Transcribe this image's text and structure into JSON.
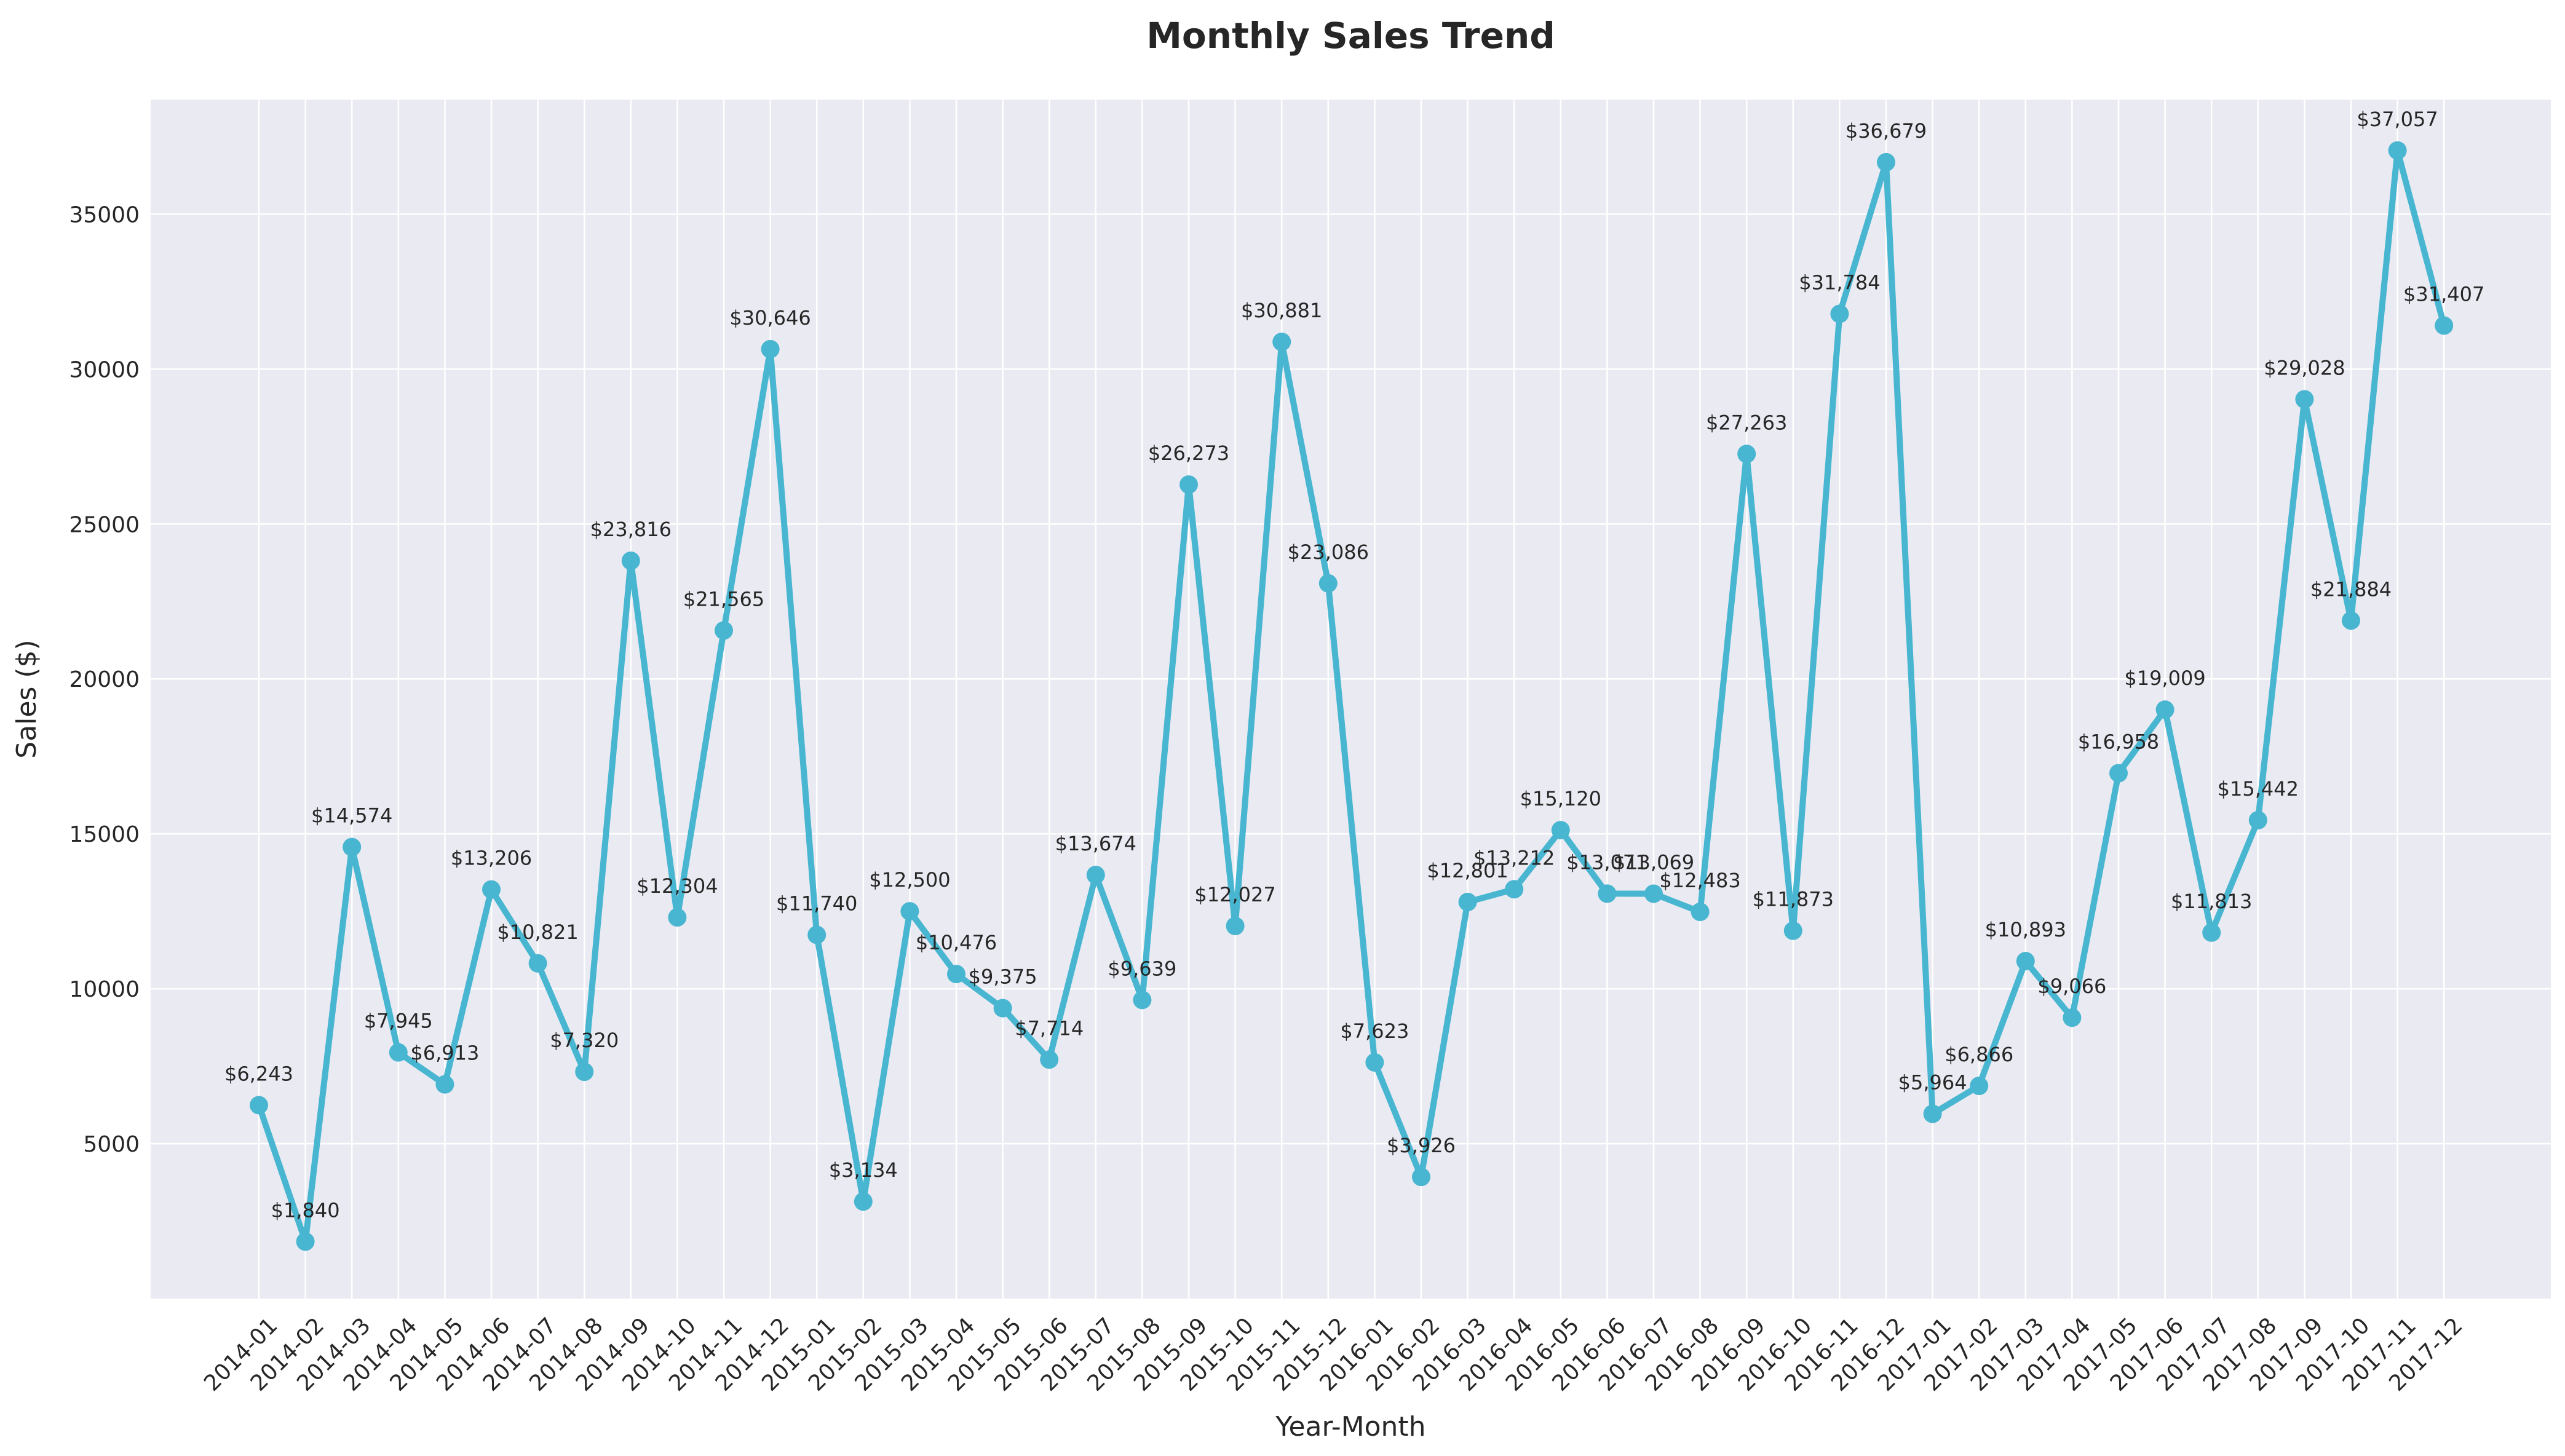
{
  "chart_data": {
    "type": "line",
    "title": "Monthly Sales Trend",
    "xlabel": "Year-Month",
    "ylabel": "Sales ($)",
    "ylim": [
      0,
      38700
    ],
    "yticks": [
      5000,
      10000,
      15000,
      20000,
      25000,
      30000,
      35000
    ],
    "grid": true,
    "legend": "none",
    "colors": {
      "line": "#48b6d0",
      "plot_bg": "#eaeaf2",
      "grid": "#ffffff",
      "text": "#262626"
    },
    "categories": [
      "2014-01",
      "2014-02",
      "2014-03",
      "2014-04",
      "2014-05",
      "2014-06",
      "2014-07",
      "2014-08",
      "2014-09",
      "2014-10",
      "2014-11",
      "2014-12",
      "2015-01",
      "2015-02",
      "2015-03",
      "2015-04",
      "2015-05",
      "2015-06",
      "2015-07",
      "2015-08",
      "2015-09",
      "2015-10",
      "2015-11",
      "2015-12",
      "2016-01",
      "2016-02",
      "2016-03",
      "2016-04",
      "2016-05",
      "2016-06",
      "2016-07",
      "2016-08",
      "2016-09",
      "2016-10",
      "2016-11",
      "2016-12",
      "2017-01",
      "2017-02",
      "2017-03",
      "2017-04",
      "2017-05",
      "2017-06",
      "2017-07",
      "2017-08",
      "2017-09",
      "2017-10",
      "2017-11",
      "2017-12"
    ],
    "series": [
      {
        "values": [
          6243,
          1840,
          14574,
          7945,
          6913,
          13206,
          10821,
          7320,
          23816,
          12304,
          21565,
          30646,
          11740,
          3134,
          12500,
          10476,
          9375,
          7714,
          13674,
          9639,
          26273,
          12027,
          30881,
          23086,
          7623,
          3926,
          12801,
          13212,
          15120,
          13071,
          13069,
          12483,
          27263,
          11873,
          31784,
          36679,
          5964,
          6866,
          10893,
          9066,
          16958,
          19009,
          11813,
          15442,
          29028,
          21884,
          37057,
          31407
        ],
        "labels": [
          "$6,243",
          "$1,840",
          "$14,574",
          "$7,945",
          "$6,913",
          "$13,206",
          "$10,821",
          "$7,320",
          "$23,816",
          "$12,304",
          "$21,565",
          "$30,646",
          "$11,740",
          "$3,134",
          "$12,500",
          "$10,476",
          "$9,375",
          "$7,714",
          "$13,674",
          "$9,639",
          "$26,273",
          "$12,027",
          "$30,881",
          "$23,086",
          "$7,623",
          "$3,926",
          "$12,801",
          "$13,212",
          "$15,120",
          "$13,071",
          "$13,069",
          "$12,483",
          "$27,263",
          "$11,873",
          "$31,784",
          "$36,679",
          "$5,964",
          "$6,866",
          "$10,893",
          "$9,066",
          "$16,958",
          "$19,009",
          "$11,813",
          "$15,442",
          "$29,028",
          "$21,884",
          "$37,057",
          "$31,407"
        ]
      }
    ]
  }
}
